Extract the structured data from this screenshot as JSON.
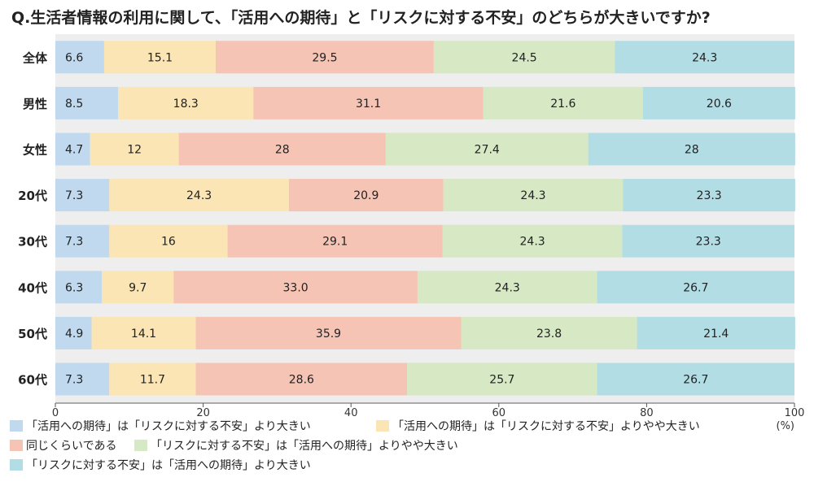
{
  "chart_data": {
    "type": "bar",
    "orientation": "horizontal",
    "stacked": true,
    "title": "Q.生活者情報の利用に関して、「活用への期待」と「リスクに対する不安」のどちらが大きいですか?",
    "categories": [
      "全体",
      "男性",
      "女性",
      "20代",
      "30代",
      "40代",
      "50代",
      "60代"
    ],
    "series": [
      {
        "name": "「活用への期待」は「リスクに対する不安」より大きい",
        "color": "#c0d9ee",
        "values": [
          6.6,
          8.5,
          4.7,
          7.3,
          7.3,
          6.3,
          4.9,
          7.3
        ],
        "labels": [
          "6.6",
          "8.5",
          "4.7",
          "7.3",
          "7.3",
          "6.3",
          "4.9",
          "7.3"
        ]
      },
      {
        "name": "「活用への期待」は「リスクに対する不安」よりやや大きい",
        "color": "#fbe5b4",
        "values": [
          15.1,
          18.3,
          12,
          24.3,
          16,
          9.7,
          14.1,
          11.7
        ],
        "labels": [
          "15.1",
          "18.3",
          "12",
          "24.3",
          "16",
          "9.7",
          "14.1",
          "11.7"
        ]
      },
      {
        "name": "同じくらいである",
        "color": "#f5c4b4",
        "values": [
          29.5,
          31.1,
          28,
          20.9,
          29.1,
          33.0,
          35.9,
          28.6
        ],
        "labels": [
          "29.5",
          "31.1",
          "28",
          "20.9",
          "29.1",
          "33.0",
          "35.9",
          "28.6"
        ]
      },
      {
        "name": "「リスクに対する不安」は「活用への期待」よりやや大きい",
        "color": "#d6e8c4",
        "values": [
          24.5,
          21.6,
          27.4,
          24.3,
          24.3,
          24.3,
          23.8,
          25.7
        ],
        "labels": [
          "24.5",
          "21.6",
          "27.4",
          "24.3",
          "24.3",
          "24.3",
          "23.8",
          "25.7"
        ]
      },
      {
        "name": "「リスクに対する不安」は「活用への期待」より大きい",
        "color": "#b2dde5",
        "values": [
          24.3,
          20.6,
          28,
          23.3,
          23.3,
          26.7,
          21.4,
          26.7
        ],
        "labels": [
          "24.3",
          "20.6",
          "28",
          "23.3",
          "23.3",
          "26.7",
          "21.4",
          "26.7"
        ]
      }
    ],
    "xlim": [
      0,
      100
    ],
    "xticks": [
      0,
      20,
      40,
      60,
      80,
      100
    ],
    "xunit": "(%)",
    "legend_position": "bottom",
    "background_color": "#eeeeee"
  }
}
